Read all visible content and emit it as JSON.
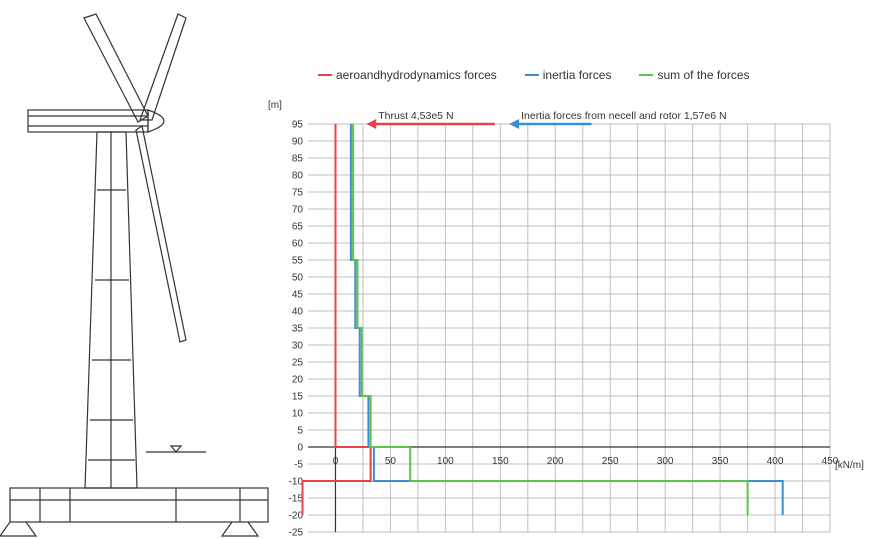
{
  "colors": {
    "aero": "#e8434b",
    "inertia": "#3c8fd6",
    "sum": "#5cc24a",
    "grid": "#bfbfbf",
    "line": "#333333"
  },
  "chart_data": {
    "type": "line",
    "title": "",
    "ylabel": "[m]",
    "xlabel": "[kN/m]",
    "xlim": [
      -25,
      450
    ],
    "ylim": [
      -25,
      95
    ],
    "xticks": [
      "0",
      "50",
      "100",
      "150",
      "200",
      "250",
      "300",
      "350",
      "400",
      "450"
    ],
    "yticks": [
      "95",
      "90",
      "85",
      "80",
      "75",
      "70",
      "65",
      "60",
      "55",
      "50",
      "45",
      "40",
      "35",
      "30",
      "25",
      "20",
      "15",
      "10",
      "5",
      "0",
      "-5",
      "-10",
      "-15",
      "-20",
      "-25"
    ],
    "legend_position": "top",
    "grid": true,
    "series": [
      {
        "name": "aeroandhydrodynamics forces",
        "color_key": "aero",
        "points": [
          [
            0,
            95
          ],
          [
            0,
            0
          ],
          [
            32,
            0
          ],
          [
            32,
            -10
          ],
          [
            -30,
            -10
          ],
          [
            -30,
            -20
          ]
        ]
      },
      {
        "name": "inertia forces",
        "color_key": "inertia",
        "points": [
          [
            14,
            95
          ],
          [
            14,
            55
          ],
          [
            18,
            55
          ],
          [
            18,
            35
          ],
          [
            22,
            35
          ],
          [
            22,
            15
          ],
          [
            30,
            15
          ],
          [
            30,
            0
          ],
          [
            35,
            0
          ],
          [
            35,
            -10
          ],
          [
            407,
            -10
          ],
          [
            407,
            -20
          ]
        ]
      },
      {
        "name": "sum of the forces",
        "color_key": "sum",
        "points": [
          [
            16,
            95
          ],
          [
            16,
            55
          ],
          [
            20,
            55
          ],
          [
            20,
            35
          ],
          [
            24,
            35
          ],
          [
            24,
            15
          ],
          [
            32,
            15
          ],
          [
            32,
            0
          ],
          [
            68,
            0
          ],
          [
            68,
            -10
          ],
          [
            375,
            -10
          ],
          [
            375,
            -20
          ]
        ]
      }
    ],
    "annotations": [
      {
        "text": "Thrust 4,53e5 N",
        "color_key": "aero",
        "arrow_from": [
          145,
          95
        ],
        "arrow_to": [
          28,
          95
        ]
      },
      {
        "text": "Inertia forces from necell  and rotor 1,57e6 N",
        "color_key": "inertia",
        "arrow_from": [
          233,
          95
        ],
        "arrow_to": [
          158,
          95
        ]
      }
    ]
  }
}
